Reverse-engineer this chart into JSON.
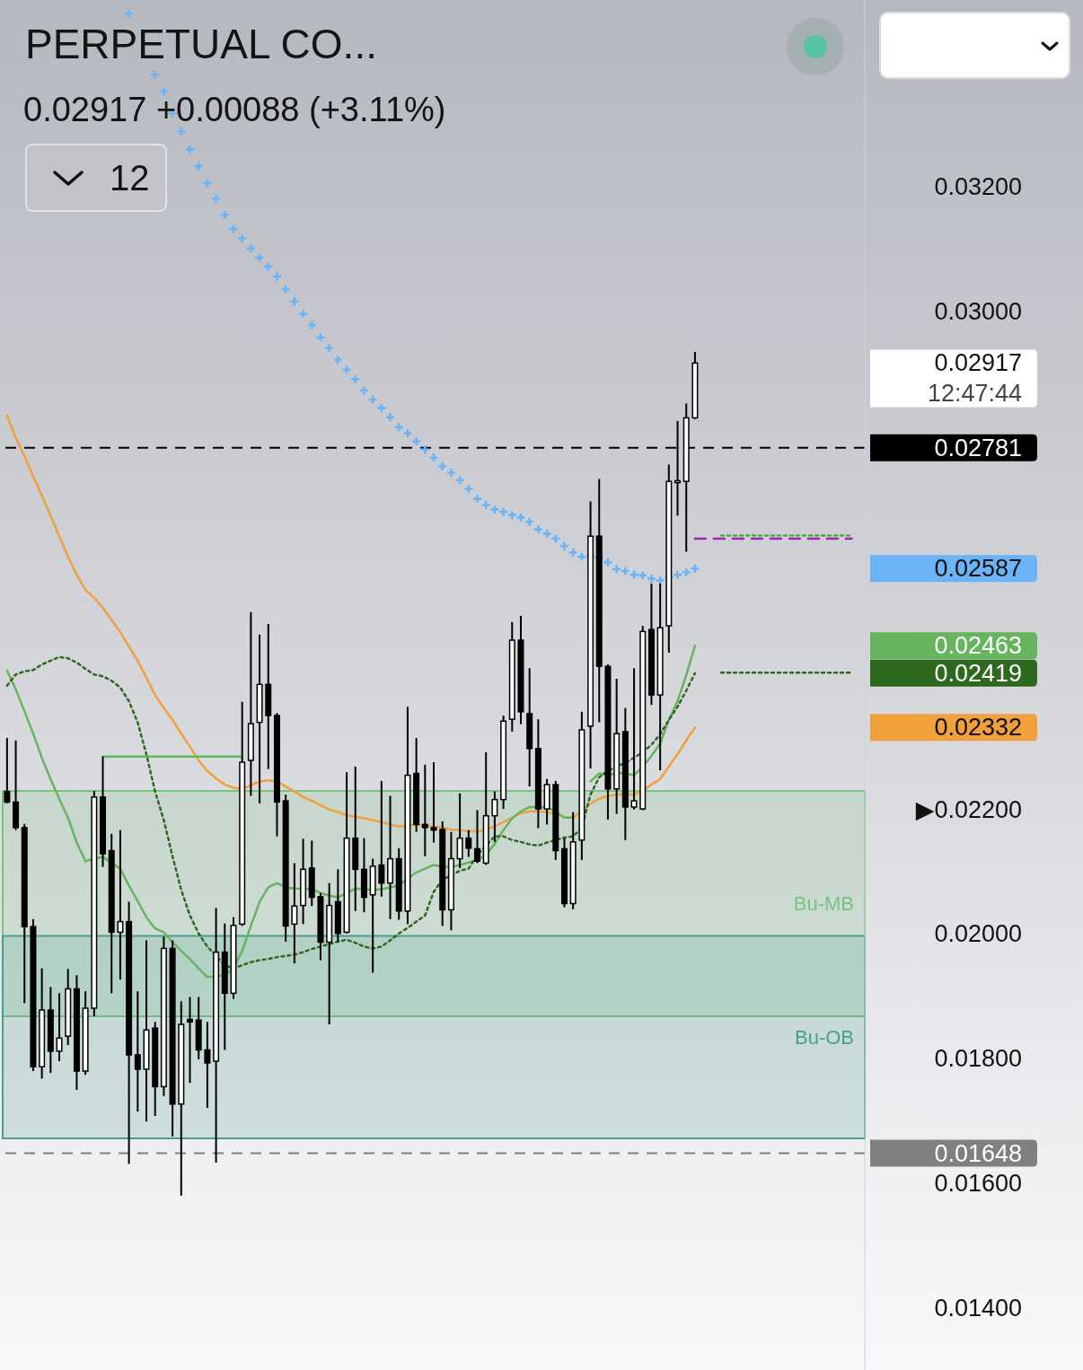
{
  "chart_data": {
    "type": "candlestick",
    "title": "PERPETUAL CO...",
    "subtitle": "0.02917 +0.00088 (+3.11%)",
    "annotations": [
      "12",
      "12:47:44"
    ],
    "categories": [
      null,
      null,
      null,
      null,
      null,
      null,
      null,
      null,
      null,
      null,
      null,
      null,
      null,
      null,
      null,
      null,
      null,
      null,
      null,
      null,
      null,
      null,
      null,
      null,
      null,
      null,
      null,
      null,
      null,
      null,
      null,
      null,
      null,
      null,
      null,
      null,
      null,
      null,
      null,
      null,
      null,
      null,
      null,
      null,
      null,
      null,
      null,
      null,
      null,
      null,
      null,
      null,
      null,
      null,
      null,
      null,
      null,
      null,
      null,
      null,
      null,
      null,
      null,
      null,
      null,
      null,
      null,
      null,
      null,
      null,
      null,
      null,
      null,
      null,
      null,
      null,
      null,
      null,
      null,
      null,
      null,
      null,
      null,
      null,
      null,
      null,
      null,
      null,
      null,
      null,
      null,
      null,
      null,
      null,
      null,
      null,
      null,
      null,
      null
    ],
    "color": "#000000",
    "ohlc": [
      [
        0.02229,
        0.02315,
        0.0221,
        0.02212
      ],
      [
        0.02212,
        0.02311,
        0.02167,
        0.02171
      ],
      [
        0.02171,
        0.02177,
        0.01889,
        0.02012
      ],
      [
        0.02012,
        0.02024,
        0.0178,
        0.01787
      ],
      [
        0.01787,
        0.01945,
        0.01768,
        0.01878
      ],
      [
        0.01878,
        0.01915,
        0.01777,
        0.01812
      ],
      [
        0.01812,
        0.01905,
        0.01796,
        0.01833
      ],
      [
        0.01836,
        0.01944,
        0.01822,
        0.01912
      ],
      [
        0.01912,
        0.01934,
        0.0175,
        0.0178
      ],
      [
        0.0178,
        0.01908,
        0.01774,
        0.01881
      ],
      [
        0.01881,
        0.0223,
        0.01868,
        0.0222
      ],
      [
        0.0222,
        0.02285,
        0.02108,
        0.02129
      ],
      [
        0.02134,
        0.02161,
        0.01905,
        0.02003
      ],
      [
        0.02003,
        0.02167,
        0.01927,
        0.0202
      ],
      [
        0.0202,
        0.02052,
        0.01631,
        0.01806
      ],
      [
        0.01806,
        0.01908,
        0.01715,
        0.01783
      ],
      [
        0.01783,
        0.0199,
        0.01699,
        0.01846
      ],
      [
        0.01849,
        0.01859,
        0.01708,
        0.01755
      ],
      [
        0.01755,
        0.01996,
        0.0174,
        0.01977
      ],
      [
        0.01977,
        0.0199,
        0.01675,
        0.01727
      ],
      [
        0.01727,
        0.01892,
        0.0158,
        0.01855
      ],
      [
        0.01863,
        0.01899,
        0.01761,
        0.01859
      ],
      [
        0.01862,
        0.01899,
        0.01799,
        0.01814
      ],
      [
        0.01814,
        0.01859,
        0.01721,
        0.01793
      ],
      [
        0.01796,
        0.02042,
        0.01633,
        0.01971
      ],
      [
        0.01971,
        0.02017,
        0.01814,
        0.01905
      ],
      [
        0.01905,
        0.02027,
        0.01896,
        0.02014
      ],
      [
        0.02016,
        0.02373,
        0.02013,
        0.02276
      ],
      [
        0.02279,
        0.02517,
        0.02222,
        0.02338
      ],
      [
        0.0234,
        0.02481,
        0.0221,
        0.02401
      ],
      [
        0.02401,
        0.02498,
        0.02265,
        0.02351
      ],
      [
        0.02351,
        0.02355,
        0.02157,
        0.02212
      ],
      [
        0.02214,
        0.02224,
        0.01988,
        0.02013
      ],
      [
        0.02016,
        0.02114,
        0.01953,
        0.02045
      ],
      [
        0.02046,
        0.02153,
        0.02016,
        0.02104
      ],
      [
        0.02106,
        0.0215,
        0.02045,
        0.02059
      ],
      [
        0.0206,
        0.02066,
        0.01958,
        0.01987
      ],
      [
        0.01987,
        0.02082,
        0.01855,
        0.02046
      ],
      [
        0.02052,
        0.02104,
        0.01987,
        0.02001
      ],
      [
        0.02003,
        0.0226,
        0.02001,
        0.02154
      ],
      [
        0.02154,
        0.02269,
        0.02037,
        0.02104
      ],
      [
        0.02104,
        0.02154,
        0.02035,
        0.02059
      ],
      [
        0.02063,
        0.02121,
        0.01938,
        0.02109
      ],
      [
        0.02111,
        0.02246,
        0.0206,
        0.02082
      ],
      [
        0.02082,
        0.02222,
        0.02024,
        0.02121
      ],
      [
        0.02121,
        0.02138,
        0.02023,
        0.02037
      ],
      [
        0.02037,
        0.02365,
        0.02016,
        0.02255
      ],
      [
        0.02258,
        0.02315,
        0.02164,
        0.02176
      ],
      [
        0.02176,
        0.02272,
        0.02125,
        0.02171
      ],
      [
        0.02171,
        0.02276,
        0.02147,
        0.02167
      ],
      [
        0.02168,
        0.02181,
        0.02013,
        0.02039
      ],
      [
        0.02039,
        0.02164,
        0.02006,
        0.02121
      ],
      [
        0.02121,
        0.02226,
        0.02106,
        0.02154
      ],
      [
        0.02154,
        0.02167,
        0.02124,
        0.02138
      ],
      [
        0.02137,
        0.02199,
        0.02114,
        0.02117
      ],
      [
        0.02114,
        0.02292,
        0.02111,
        0.0219
      ],
      [
        0.0219,
        0.02229,
        0.02148,
        0.02216
      ],
      [
        0.02216,
        0.02351,
        0.02201,
        0.02342
      ],
      [
        0.02345,
        0.02501,
        0.02325,
        0.02472
      ],
      [
        0.02472,
        0.02511,
        0.02337,
        0.02357
      ],
      [
        0.02354,
        0.02427,
        0.02237,
        0.02298
      ],
      [
        0.02298,
        0.02345,
        0.0217,
        0.02201
      ],
      [
        0.02201,
        0.02249,
        0.02176,
        0.0224
      ],
      [
        0.0224,
        0.02246,
        0.02119,
        0.02134
      ],
      [
        0.02137,
        0.02154,
        0.02043,
        0.02049
      ],
      [
        0.02049,
        0.02196,
        0.0204,
        0.02148
      ],
      [
        0.02151,
        0.02357,
        0.02119,
        0.02328
      ],
      [
        0.02334,
        0.02695,
        0.02266,
        0.02639
      ],
      [
        0.02639,
        0.02731,
        0.0234,
        0.0243
      ],
      [
        0.0243,
        0.02433,
        0.02184,
        0.02233
      ],
      [
        0.02233,
        0.0241,
        0.02193,
        0.02322
      ],
      [
        0.02325,
        0.02363,
        0.02151,
        0.02204
      ],
      [
        0.02204,
        0.02427,
        0.022,
        0.02214
      ],
      [
        0.02201,
        0.02495,
        0.02199,
        0.02486
      ],
      [
        0.02489,
        0.02563,
        0.02368,
        0.02384
      ],
      [
        0.02384,
        0.02563,
        0.02263,
        0.02492
      ],
      [
        0.02495,
        0.02754,
        0.02452,
        0.02727
      ],
      [
        0.02725,
        0.02824,
        0.02672,
        0.02728
      ],
      [
        0.02727,
        0.02852,
        0.02614,
        0.02829
      ],
      [
        0.02829,
        0.02935,
        0.02827,
        0.02917
      ],
      null,
      null,
      null,
      null,
      null,
      null,
      null,
      null,
      null,
      null,
      null,
      null,
      null,
      null,
      null,
      null,
      null,
      null,
      null
    ],
    "value_labels": [
      null,
      null,
      null,
      null,
      null,
      null,
      null,
      null,
      null,
      null,
      null,
      null,
      null,
      null,
      null,
      null,
      null,
      null,
      null,
      null,
      null,
      null,
      null,
      null,
      null,
      null,
      null,
      null,
      null,
      null,
      null,
      null,
      null,
      null,
      null,
      null,
      null,
      null,
      null,
      null,
      null,
      null,
      null,
      null,
      null,
      null,
      null,
      null,
      null,
      null,
      null,
      null,
      null,
      null,
      null,
      null,
      null,
      null,
      null,
      null,
      null,
      null,
      null,
      null,
      null,
      null,
      null,
      null,
      null,
      null,
      null,
      null,
      null,
      null,
      null,
      null,
      null,
      null,
      null,
      "0.02917",
      null,
      null,
      null,
      null,
      null,
      null,
      null,
      null,
      null,
      null,
      null,
      null,
      null,
      null,
      null,
      null,
      null,
      null,
      null
    ],
    "series": [
      {
        "type": "line",
        "color": "#f0a03c",
        "line_style": "solid",
        "values": [
          0.02833,
          0.02797,
          0.02768,
          0.02735,
          0.02704,
          0.02672,
          0.02639,
          0.02606,
          0.02577,
          0.02553,
          0.0254,
          0.02524,
          0.02505,
          0.02485,
          0.02462,
          0.02439,
          0.02412,
          0.02384,
          0.02363,
          0.02344,
          0.02322,
          0.02301,
          0.02279,
          0.02262,
          0.0225,
          0.0224,
          0.02235,
          0.02233,
          0.02239,
          0.02245,
          0.02247,
          0.02245,
          0.02237,
          0.02229,
          0.0222,
          0.02214,
          0.02207,
          0.022,
          0.02196,
          0.02191,
          0.02188,
          0.02186,
          0.02183,
          0.0218,
          0.02176,
          0.02173,
          0.02174,
          0.02176,
          0.02174,
          0.02173,
          0.02171,
          0.02168,
          0.02167,
          0.02165,
          0.02165,
          0.02168,
          0.02173,
          0.0218,
          0.02187,
          0.02194,
          0.02197,
          0.02197,
          0.02196,
          0.02193,
          0.02188,
          0.02187,
          0.02197,
          0.0221,
          0.02217,
          0.02222,
          0.02224,
          0.02224,
          0.02224,
          0.0223,
          0.0224,
          0.02249,
          0.02269,
          0.02289,
          0.02311,
          0.02332,
          null,
          null,
          null,
          null,
          null,
          null,
          null,
          null,
          null,
          null,
          null,
          null,
          null,
          null,
          null,
          null,
          null,
          null,
          null
        ]
      },
      {
        "type": "line",
        "color": "#66b45e",
        "line_style": "solid",
        "values": [
          0.02423,
          0.02393,
          0.02358,
          0.02322,
          0.02283,
          0.02249,
          0.02217,
          0.02187,
          0.02147,
          0.02117,
          0.02121,
          0.02124,
          0.02114,
          0.02105,
          0.02078,
          0.02053,
          0.02027,
          0.02009,
          0.02003,
          0.01987,
          0.01973,
          0.0196,
          0.01945,
          0.01931,
          0.01932,
          0.01934,
          0.01945,
          0.01973,
          0.02013,
          0.02052,
          0.02075,
          0.02082,
          0.02075,
          0.02073,
          0.02073,
          0.02072,
          0.02066,
          0.02062,
          0.02059,
          0.02066,
          0.02073,
          0.02072,
          0.02071,
          0.02072,
          0.02075,
          0.02078,
          0.02089,
          0.02099,
          0.02105,
          0.02111,
          0.02108,
          0.02108,
          0.02111,
          0.02115,
          0.02119,
          0.02127,
          0.02145,
          0.02167,
          0.02186,
          0.02197,
          0.02204,
          0.02204,
          0.02204,
          0.02197,
          0.02187,
          0.02187,
          null,
          0.02245,
          0.02258,
          0.02255,
          0.02259,
          0.02258,
          0.02255,
          0.02269,
          0.02286,
          0.02306,
          0.02344,
          0.02374,
          0.02416,
          0.02463,
          null,
          null,
          null,
          null,
          null,
          null,
          null,
          null,
          null,
          null,
          null,
          null,
          null,
          null,
          null,
          null,
          null,
          null,
          null
        ]
      },
      {
        "type": "line",
        "color": "#2d6a1f",
        "line_style": "dotted",
        "values": [
          0.02399,
          0.02417,
          0.02422,
          0.02424,
          0.02433,
          0.02439,
          0.02445,
          0.02443,
          0.02436,
          0.02426,
          0.02417,
          0.02414,
          0.02407,
          0.02396,
          0.02374,
          0.0234,
          0.02289,
          0.02229,
          0.02183,
          0.02125,
          0.02071,
          0.0203,
          0.02001,
          0.0198,
          0.01965,
          0.0195,
          0.01945,
          0.0195,
          0.01955,
          0.01958,
          0.0196,
          0.01963,
          0.01965,
          0.01967,
          0.01971,
          0.01976,
          0.0198,
          0.01984,
          0.01988,
          0.01991,
          0.01986,
          0.0198,
          0.01977,
          0.0198,
          0.0199,
          0.02001,
          0.0201,
          0.0202,
          0.0203,
          0.02068,
          0.02088,
          0.02094,
          0.02102,
          0.02105,
          0.02127,
          0.02142,
          0.02157,
          0.02157,
          0.02151,
          0.02148,
          0.02144,
          0.02142,
          0.02147,
          0.02151,
          0.02155,
          0.02157,
          0.02171,
          0.02224,
          0.02252,
          0.02262,
          0.02269,
          0.02275,
          0.02283,
          0.02292,
          0.02304,
          0.02321,
          0.02344,
          0.02365,
          0.02391,
          0.02419,
          null,
          null,
          null,
          null,
          null,
          null,
          null,
          null,
          null,
          null,
          null,
          null,
          null,
          null,
          null,
          null,
          null,
          null,
          null
        ]
      },
      {
        "type": "scatter",
        "color": "#6ab4f5",
        "marker": "cross",
        "values": [
          null,
          null,
          null,
          null,
          null,
          null,
          null,
          null,
          null,
          null,
          null,
          null,
          null,
          null,
          0.03478,
          null,
          null,
          0.0338,
          0.03353,
          0.03318,
          0.03289,
          0.0326,
          0.03233,
          0.03206,
          0.03181,
          0.03155,
          0.03132,
          0.03117,
          0.03101,
          0.03086,
          0.03072,
          0.03056,
          0.03035,
          0.03016,
          0.02996,
          0.02978,
          0.02958,
          0.02941,
          0.02922,
          0.02906,
          0.02891,
          0.02873,
          0.02858,
          0.02845,
          0.0283,
          0.02814,
          0.02804,
          0.02791,
          0.02778,
          0.02765,
          0.02751,
          0.02741,
          0.02729,
          0.02715,
          0.02699,
          0.02689,
          0.02682,
          0.02678,
          0.02673,
          0.02669,
          0.02662,
          0.0265,
          0.02643,
          0.02635,
          0.02623,
          0.02613,
          0.02606,
          0.02607,
          0.02604,
          0.02597,
          0.02586,
          0.02583,
          0.02577,
          0.02576,
          0.02571,
          0.02568,
          0.02573,
          0.02577,
          0.02581,
          0.02587,
          null,
          null,
          null,
          null,
          null,
          null,
          null,
          null,
          null,
          null,
          null,
          null,
          null,
          null,
          null,
          null,
          null,
          null,
          null
        ]
      },
      {
        "type": "line",
        "color": "#5cb85c",
        "line_style": "solid",
        "values": [
          null,
          null,
          null,
          null,
          null,
          null,
          null,
          null,
          null,
          null,
          null,
          0.02285,
          0.02285,
          0.02285,
          0.02285,
          0.02285,
          0.02285,
          0.02285,
          0.02285,
          0.02285,
          0.02285,
          0.02285,
          0.02285,
          0.02285,
          0.02285,
          0.02285,
          0.02285,
          0.02285,
          null,
          null,
          null,
          null,
          null,
          null,
          null,
          null,
          null,
          null,
          null,
          null,
          null,
          null,
          null,
          null,
          null,
          null,
          null,
          null,
          null,
          null,
          null,
          null,
          null,
          null,
          null,
          null,
          null,
          null,
          null,
          null,
          null,
          null,
          null,
          null,
          null,
          null,
          null,
          null,
          null,
          null,
          null,
          null,
          null,
          null,
          null,
          null,
          null,
          null,
          null,
          null,
          null,
          null,
          null,
          null,
          null,
          null,
          null,
          null,
          null,
          null,
          null,
          null,
          null,
          null,
          null,
          null,
          null,
          null,
          null
        ]
      },
      {
        "type": "line",
        "color": "#9c27b0",
        "line_style": "dashed",
        "values": [
          null,
          null,
          null,
          null,
          null,
          null,
          null,
          null,
          null,
          null,
          null,
          null,
          null,
          null,
          null,
          null,
          null,
          null,
          null,
          null,
          null,
          null,
          null,
          null,
          null,
          null,
          null,
          null,
          null,
          null,
          null,
          null,
          null,
          null,
          null,
          null,
          null,
          null,
          null,
          null,
          null,
          null,
          null,
          null,
          null,
          null,
          null,
          null,
          null,
          null,
          null,
          null,
          null,
          null,
          null,
          null,
          null,
          null,
          null,
          null,
          null,
          null,
          null,
          null,
          null,
          null,
          null,
          null,
          null,
          null,
          null,
          null,
          null,
          null,
          null,
          null,
          null,
          null,
          null,
          0.02635,
          0.02635,
          0.02635,
          0.02635,
          0.02635,
          0.02635,
          0.02635,
          0.02635,
          0.02635,
          0.02635,
          0.02635,
          0.02635,
          0.02635,
          0.02635,
          0.02635,
          0.02635,
          0.02635,
          0.02635,
          0.02635,
          null
        ]
      },
      {
        "type": "line",
        "color": "#55a84a",
        "line_style": "dotted",
        "values": [
          null,
          null,
          null,
          null,
          null,
          null,
          null,
          null,
          null,
          null,
          null,
          null,
          null,
          null,
          null,
          null,
          null,
          null,
          null,
          null,
          null,
          null,
          null,
          null,
          null,
          null,
          null,
          null,
          null,
          null,
          null,
          null,
          null,
          null,
          null,
          null,
          null,
          null,
          null,
          null,
          null,
          null,
          null,
          null,
          null,
          null,
          null,
          null,
          null,
          null,
          null,
          null,
          null,
          null,
          null,
          null,
          null,
          null,
          null,
          null,
          null,
          null,
          null,
          null,
          null,
          null,
          null,
          null,
          null,
          null,
          null,
          null,
          null,
          null,
          null,
          null,
          null,
          null,
          null,
          null,
          null,
          null,
          0.0264,
          0.0264,
          0.0264,
          0.0264,
          0.0264,
          0.0264,
          0.0264,
          0.0264,
          0.0264,
          0.0264,
          0.0264,
          0.0264,
          0.0264,
          0.0264,
          0.0264,
          0.0264,
          null
        ]
      },
      {
        "type": "line",
        "color": "#2d6a1f",
        "line_style": "dotted",
        "values": [
          null,
          null,
          null,
          null,
          null,
          null,
          null,
          null,
          null,
          null,
          null,
          null,
          null,
          null,
          null,
          null,
          null,
          null,
          null,
          null,
          null,
          null,
          null,
          null,
          null,
          null,
          null,
          null,
          null,
          null,
          null,
          null,
          null,
          null,
          null,
          null,
          null,
          null,
          null,
          null,
          null,
          null,
          null,
          null,
          null,
          null,
          null,
          null,
          null,
          null,
          null,
          null,
          null,
          null,
          null,
          null,
          null,
          null,
          null,
          null,
          null,
          null,
          null,
          null,
          null,
          null,
          null,
          null,
          null,
          null,
          null,
          null,
          null,
          null,
          null,
          null,
          null,
          null,
          null,
          null,
          null,
          null,
          0.0242,
          0.0242,
          0.0242,
          0.0242,
          0.0242,
          0.0242,
          0.0242,
          0.0242,
          0.0242,
          0.0242,
          0.0242,
          0.0242,
          0.0242,
          0.0242,
          0.0242,
          0.0242,
          null
        ]
      }
    ],
    "ylim": [
      0.013,
      0.035
    ],
    "yticks": [
      {
        "value": 0.014,
        "label": "0.01400"
      },
      {
        "value": 0.016,
        "label": "0.01600"
      },
      {
        "value": 0.018,
        "label": "0.01800"
      },
      {
        "value": 0.02,
        "label": "0.02000"
      },
      {
        "value": 0.022,
        "label": "▶0.02200"
      },
      {
        "value": 0.02332,
        "label": "0.02332"
      },
      {
        "value": 0.02419,
        "label": "0.02419"
      },
      {
        "value": 0.02463,
        "label": "0.02463"
      },
      {
        "value": 0.02587,
        "label": "0.02587"
      },
      {
        "value": 0.03,
        "label": "0.03000"
      },
      {
        "value": 0.032,
        "label": "0.03200"
      }
    ],
    "tick_labels": "y",
    "ref_lines": [
      {
        "axis": "y",
        "value": 0.02781,
        "label": "0.02781",
        "color": "#000000",
        "line_style": "dashed"
      },
      {
        "axis": "y",
        "value": 0.01648,
        "label": "0.01648",
        "color": "#808080",
        "line_style": "dashed"
      }
    ],
    "bands": [
      {
        "axis": "y",
        "from": 0.01868,
        "to": 0.0223,
        "label": "Bu-MB",
        "color": "#78c282"
      },
      {
        "axis": "y",
        "from": 0.01672,
        "to": 0.01997,
        "label": "Bu-OB",
        "color": "#4a9e8e"
      }
    ]
  }
}
